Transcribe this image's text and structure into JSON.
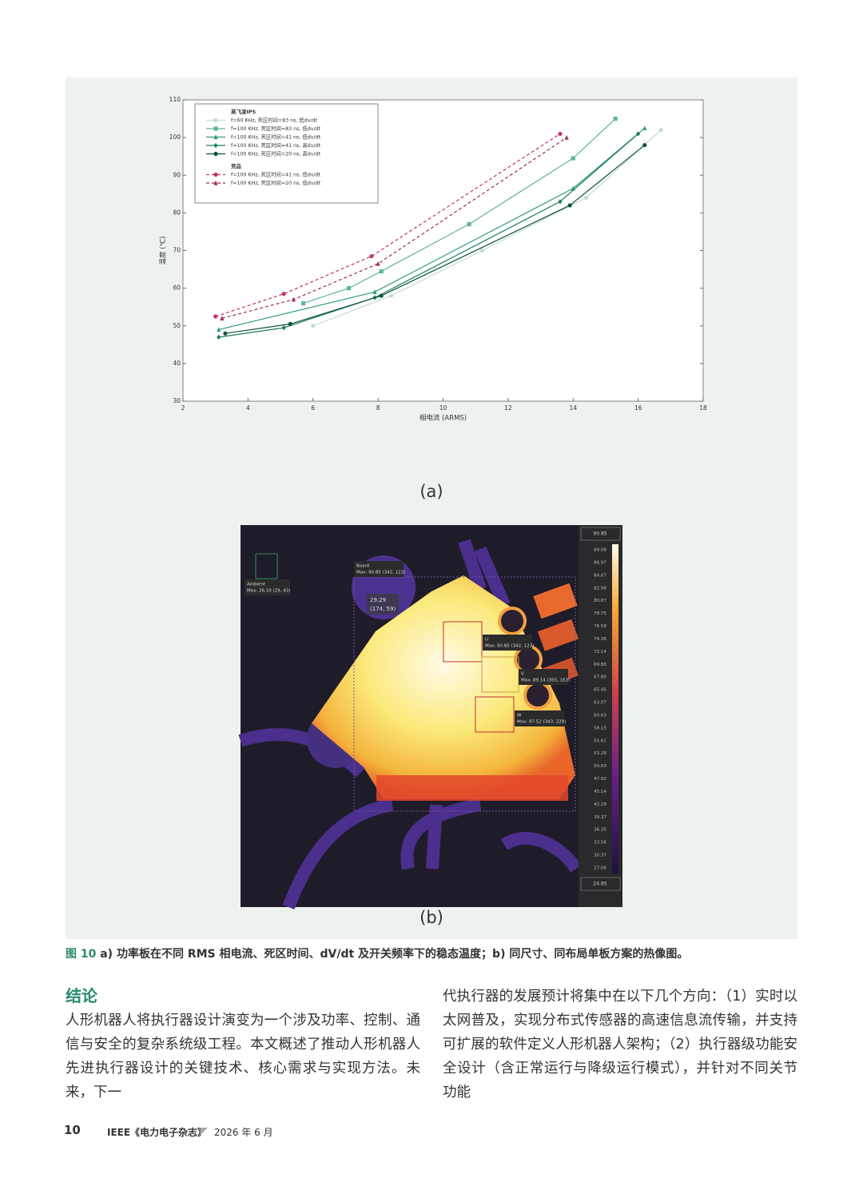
{
  "chart_data": {
    "type": "line",
    "xlabel": "相电流 (ARMS)",
    "ylabel": "温度 (℃)",
    "xlim": [
      2,
      18
    ],
    "xticks": [
      2,
      4,
      6,
      8,
      10,
      12,
      14,
      16,
      18
    ],
    "ylim": [
      30,
      110
    ],
    "yticks": [
      30,
      40,
      50,
      60,
      70,
      80,
      90,
      100,
      110
    ],
    "grid": false,
    "legend": "upper left",
    "groups": [
      {
        "name": "英飞凌IPS",
        "series": [
          {
            "name": "f=60 KHz, 死区时间=83 ns, 低dv/dt",
            "color": "#c3dcd2",
            "marker": "circle",
            "dash": false,
            "x": [
              6.0,
              8.4,
              11.2,
              14.4,
              16.7
            ],
            "values": [
              50,
              58,
              70,
              84,
              102
            ]
          },
          {
            "name": "f=100 KHz, 死区时间=83 ns, 低dv/dt",
            "color": "#5fb596",
            "marker": "square",
            "dash": false,
            "x": [
              5.7,
              7.1,
              8.1,
              10.8,
              14.0,
              15.3
            ],
            "values": [
              56,
              60,
              64.5,
              77,
              94.5,
              105
            ]
          },
          {
            "name": "f=100 KHz, 死区时间=41 ns, 低dv/dt",
            "color": "#2f9c7b",
            "marker": "triangle",
            "dash": false,
            "x": [
              3.1,
              7.9,
              14.0,
              16.2
            ],
            "values": [
              49,
              59,
              86.5,
              102.5
            ]
          },
          {
            "name": "f=100 KHz, 死区时间=41 ns, 高dv/dt",
            "color": "#1e7c63",
            "marker": "diamond",
            "dash": false,
            "x": [
              3.1,
              5.1,
              7.9,
              13.6,
              16.0
            ],
            "values": [
              47,
              49.5,
              57.5,
              83,
              101
            ]
          },
          {
            "name": "f=100 KHz, 死区时间=20 ns, 高dv/dt",
            "color": "#0f5240",
            "marker": "circle",
            "dash": false,
            "x": [
              3.3,
              5.3,
              8.1,
              13.9,
              16.2
            ],
            "values": [
              48,
              50.5,
              58,
              82,
              98
            ]
          }
        ]
      },
      {
        "name": "竞品",
        "series": [
          {
            "name": "f=100 KHz, 死区时间=41 ns, 低dv/dt",
            "color": "#c2306e",
            "marker": "circle",
            "dash": true,
            "x": [
              3.0,
              5.1,
              7.8,
              13.6
            ],
            "values": [
              52.5,
              58.5,
              68.5,
              101
            ]
          },
          {
            "name": "f=100 KHz, 死区时间=20 ns, 低dv/dt",
            "color": "#9c2a5c",
            "marker": "triangle",
            "dash": true,
            "x": [
              3.2,
              5.4,
              8.0,
              13.8
            ],
            "values": [
              52,
              57,
              66.5,
              100
            ]
          }
        ]
      }
    ]
  },
  "figure": {
    "label_a": "(a)",
    "label_b": "(b)",
    "caption_number": "图 10",
    "caption_text": "a) 功率板在不同 RMS 相电流、死区时间、dV/dt 及开关频率下的稳态温度；b) 同尺寸、同布局单板方案的热像图。"
  },
  "thermal": {
    "scale_max": "90.85",
    "scale_min": "24.85",
    "scale": [
      "89.08",
      "86.97",
      "84.87",
      "82.98",
      "80.87",
      "78.75",
      "76.59",
      "74.38",
      "72.14",
      "69.88",
      "67.80",
      "65.45",
      "63.07",
      "60.63",
      "58.15",
      "55.61",
      "53.28",
      "50.63",
      "47.92",
      "45.14",
      "42.29",
      "39.37",
      "36.35",
      "33.56",
      "30.37",
      "27.06"
    ],
    "ambient": {
      "name": "Ambient",
      "max": "Max: 26.10 (29, 43)"
    },
    "board": {
      "name": "Board",
      "max": "Max: 90.85 (342, 123)"
    },
    "spot": {
      "value": "29.29",
      "pos": "(174, 59)"
    },
    "u": {
      "name": "U",
      "max": "Max: 90.85 (342, 123)"
    },
    "v": {
      "name": "V",
      "max": "Max: 89.14 (355, 163)"
    },
    "w": {
      "name": "W",
      "max": "Max: 87.52 (343, 229)"
    }
  },
  "body": {
    "heading": "结论",
    "left": "人形机器人将执行器设计演变为一个涉及功率、控制、通信与安全的复杂系统级工程。本文概述了推动人形机器人先进执行器设计的关键技术、核心需求与实现方法。未来，下一",
    "right": "代执行器的发展预计将集中在以下几个方向：（1）实时以太网普及，实现分布式传感器的高速信息流传输，并支持可扩展的软件定义人形机器人架构；（2）执行器级功能安全设计（含正常运行与降级运行模式），并针对不同关节功能"
  },
  "footer": {
    "page": "10",
    "journal": "IEEE《电力电子杂志》",
    "date": "2026 年 6 月"
  }
}
